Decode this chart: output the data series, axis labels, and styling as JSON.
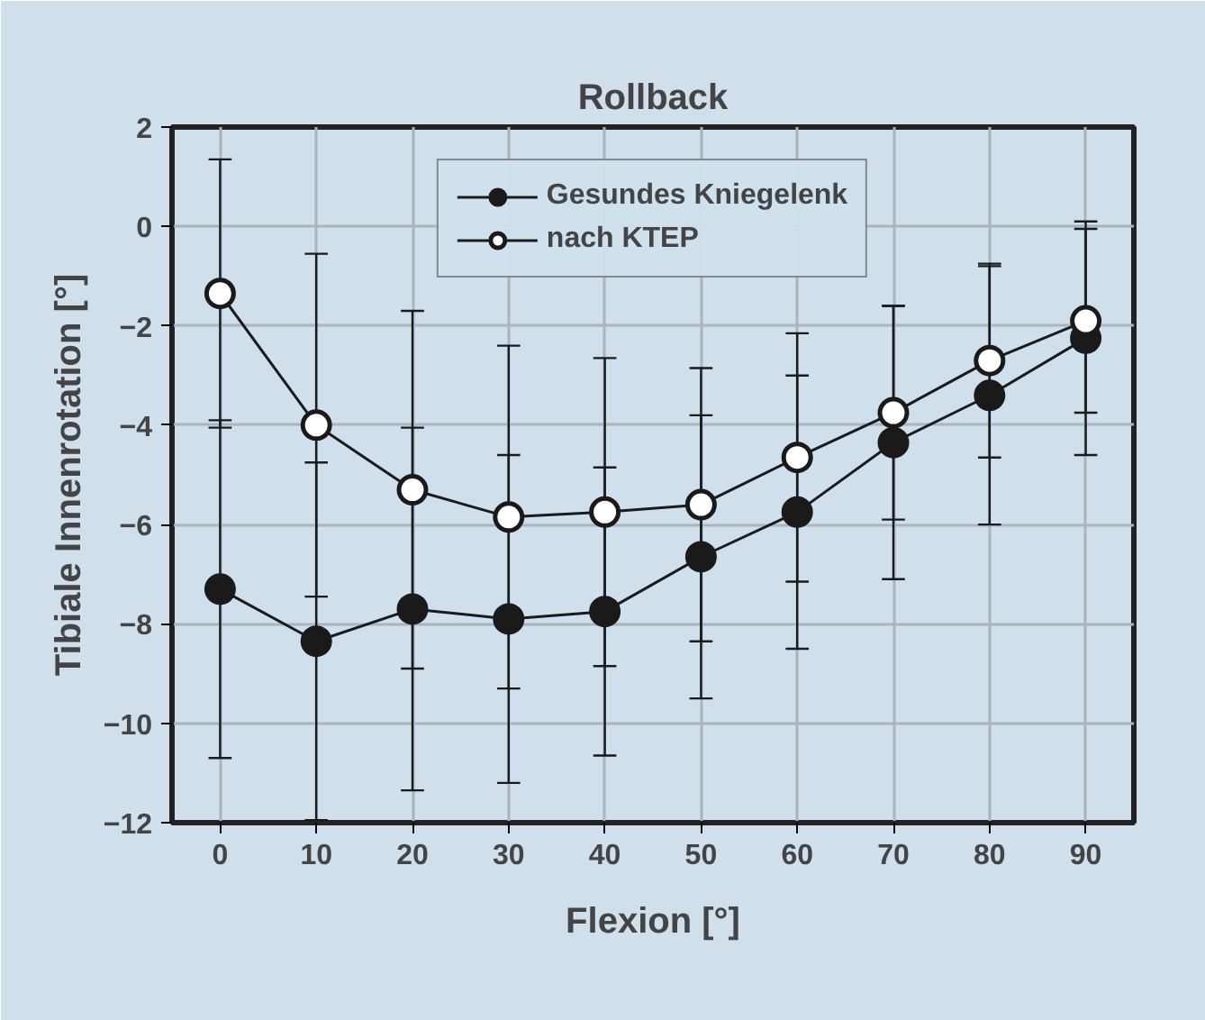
{
  "chart_data": {
    "type": "line",
    "title": "Rollback",
    "xlabel": "Flexion [°]",
    "ylabel": "Tibiale Innenrotation [°]",
    "x": [
      0,
      10,
      20,
      30,
      40,
      50,
      60,
      70,
      80,
      90
    ],
    "series": [
      {
        "name": "Gesundes Kniegelenk",
        "color": "#1a1a1a",
        "values": [
          -7.3,
          -8.35,
          -7.7,
          -7.9,
          -7.75,
          -6.65,
          -5.75,
          -4.35,
          -3.4,
          -2.25
        ],
        "errors": [
          3.4,
          3.6,
          3.65,
          3.3,
          2.9,
          2.85,
          2.75,
          2.75,
          2.6,
          2.35
        ]
      },
      {
        "name": "nach KTEP",
        "color": "#1a1a1a",
        "values": [
          -1.35,
          -4.0,
          -5.3,
          -5.85,
          -5.75,
          -5.6,
          -4.65,
          -3.75,
          -2.7,
          -1.9
        ],
        "errors": [
          2.7,
          3.45,
          3.6,
          3.45,
          3.1,
          2.75,
          2.5,
          2.15,
          1.95,
          1.85
        ]
      }
    ],
    "xlim": [
      -5,
      95
    ],
    "xticks": [
      0,
      10,
      20,
      30,
      40,
      50,
      60,
      70,
      80,
      90
    ],
    "ylim": [
      -12,
      2
    ],
    "yticks": [
      -12,
      -10,
      -8,
      -6,
      -4,
      -2,
      0,
      2
    ],
    "grid": true,
    "legend": "top",
    "marker": "circle",
    "line_style": "solid"
  }
}
